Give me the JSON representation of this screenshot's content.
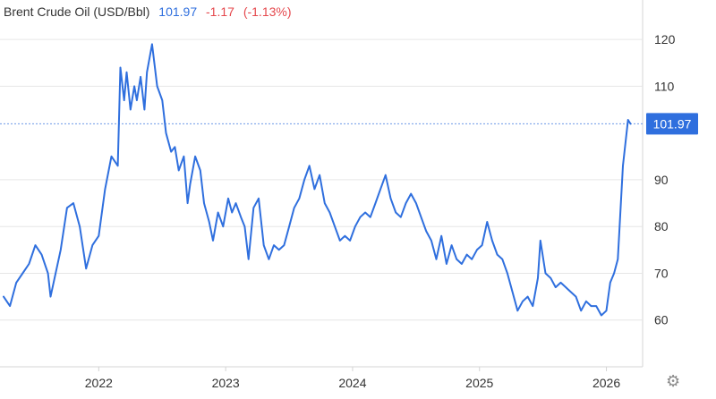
{
  "header": {
    "title": "Brent Crude Oil (USD/Bbl)",
    "price": "101.97",
    "change": "-1.17",
    "change_pct": "(-1.13%)"
  },
  "colors": {
    "line": "#2f6fde",
    "negative": "#e5484d",
    "grid": "#e6e6e6",
    "text": "#333333"
  },
  "settings_icon": "gear-icon",
  "chart_data": {
    "type": "line",
    "title": "Brent Crude Oil (USD/Bbl)",
    "xlabel": "",
    "ylabel": "",
    "ylim": [
      50,
      125
    ],
    "xlim": [
      2021.25,
      2026.25
    ],
    "y_ticks": [
      120,
      110,
      90,
      80,
      70,
      60
    ],
    "x_ticks": [
      "2022",
      "2023",
      "2024",
      "2025",
      "2026"
    ],
    "last_value_label": "101.97",
    "last_value": 101.97,
    "grid": true,
    "legend": "none",
    "series": [
      {
        "values": [
          [
            2021.25,
            65.0
          ],
          [
            2021.3,
            63.0
          ],
          [
            2021.35,
            68.0
          ],
          [
            2021.4,
            70.0
          ],
          [
            2021.45,
            72.0
          ],
          [
            2021.5,
            76.0
          ],
          [
            2021.55,
            74.0
          ],
          [
            2021.6,
            70.0
          ],
          [
            2021.62,
            65.0
          ],
          [
            2021.7,
            75.0
          ],
          [
            2021.75,
            84.0
          ],
          [
            2021.8,
            85.0
          ],
          [
            2021.85,
            80.0
          ],
          [
            2021.9,
            71.0
          ],
          [
            2021.95,
            76.0
          ],
          [
            2022.0,
            78.0
          ],
          [
            2022.05,
            88.0
          ],
          [
            2022.1,
            95.0
          ],
          [
            2022.15,
            93.0
          ],
          [
            2022.17,
            114.0
          ],
          [
            2022.2,
            107.0
          ],
          [
            2022.22,
            113.0
          ],
          [
            2022.25,
            105.0
          ],
          [
            2022.28,
            110.0
          ],
          [
            2022.3,
            107.0
          ],
          [
            2022.33,
            112.0
          ],
          [
            2022.36,
            105.0
          ],
          [
            2022.38,
            113.0
          ],
          [
            2022.42,
            119.0
          ],
          [
            2022.46,
            110.0
          ],
          [
            2022.5,
            107.0
          ],
          [
            2022.53,
            100.0
          ],
          [
            2022.57,
            96.0
          ],
          [
            2022.6,
            97.0
          ],
          [
            2022.63,
            92.0
          ],
          [
            2022.67,
            95.0
          ],
          [
            2022.7,
            85.0
          ],
          [
            2022.72,
            89.0
          ],
          [
            2022.76,
            95.0
          ],
          [
            2022.8,
            92.0
          ],
          [
            2022.83,
            85.0
          ],
          [
            2022.87,
            81.0
          ],
          [
            2022.9,
            77.0
          ],
          [
            2022.94,
            83.0
          ],
          [
            2022.98,
            80.0
          ],
          [
            2023.02,
            86.0
          ],
          [
            2023.05,
            83.0
          ],
          [
            2023.08,
            85.0
          ],
          [
            2023.12,
            82.0
          ],
          [
            2023.15,
            80.0
          ],
          [
            2023.18,
            73.0
          ],
          [
            2023.22,
            84.0
          ],
          [
            2023.26,
            86.0
          ],
          [
            2023.3,
            76.0
          ],
          [
            2023.34,
            73.0
          ],
          [
            2023.38,
            76.0
          ],
          [
            2023.42,
            75.0
          ],
          [
            2023.46,
            76.0
          ],
          [
            2023.5,
            80.0
          ],
          [
            2023.54,
            84.0
          ],
          [
            2023.58,
            86.0
          ],
          [
            2023.62,
            90.0
          ],
          [
            2023.66,
            93.0
          ],
          [
            2023.7,
            88.0
          ],
          [
            2023.74,
            91.0
          ],
          [
            2023.78,
            85.0
          ],
          [
            2023.82,
            83.0
          ],
          [
            2023.86,
            80.0
          ],
          [
            2023.9,
            77.0
          ],
          [
            2023.94,
            78.0
          ],
          [
            2023.98,
            77.0
          ],
          [
            2024.02,
            80.0
          ],
          [
            2024.06,
            82.0
          ],
          [
            2024.1,
            83.0
          ],
          [
            2024.14,
            82.0
          ],
          [
            2024.18,
            85.0
          ],
          [
            2024.22,
            88.0
          ],
          [
            2024.26,
            91.0
          ],
          [
            2024.3,
            86.0
          ],
          [
            2024.34,
            83.0
          ],
          [
            2024.38,
            82.0
          ],
          [
            2024.42,
            85.0
          ],
          [
            2024.46,
            87.0
          ],
          [
            2024.5,
            85.0
          ],
          [
            2024.54,
            82.0
          ],
          [
            2024.58,
            79.0
          ],
          [
            2024.62,
            77.0
          ],
          [
            2024.66,
            73.0
          ],
          [
            2024.7,
            78.0
          ],
          [
            2024.74,
            72.0
          ],
          [
            2024.78,
            76.0
          ],
          [
            2024.82,
            73.0
          ],
          [
            2024.86,
            72.0
          ],
          [
            2024.9,
            74.0
          ],
          [
            2024.94,
            73.0
          ],
          [
            2024.98,
            75.0
          ],
          [
            2025.02,
            76.0
          ],
          [
            2025.06,
            81.0
          ],
          [
            2025.1,
            77.0
          ],
          [
            2025.14,
            74.0
          ],
          [
            2025.18,
            73.0
          ],
          [
            2025.22,
            70.0
          ],
          [
            2025.26,
            66.0
          ],
          [
            2025.3,
            62.0
          ],
          [
            2025.34,
            64.0
          ],
          [
            2025.38,
            65.0
          ],
          [
            2025.42,
            63.0
          ],
          [
            2025.46,
            69.0
          ],
          [
            2025.48,
            77.0
          ],
          [
            2025.52,
            70.0
          ],
          [
            2025.56,
            69.0
          ],
          [
            2025.6,
            67.0
          ],
          [
            2025.64,
            68.0
          ],
          [
            2025.68,
            67.0
          ],
          [
            2025.72,
            66.0
          ],
          [
            2025.76,
            65.0
          ],
          [
            2025.8,
            62.0
          ],
          [
            2025.84,
            64.0
          ],
          [
            2025.88,
            63.0
          ],
          [
            2025.92,
            63.0
          ],
          [
            2025.96,
            61.0
          ],
          [
            2026.0,
            62.0
          ],
          [
            2026.03,
            68.0
          ],
          [
            2026.06,
            70.0
          ],
          [
            2026.09,
            73.0
          ],
          [
            2026.13,
            93.0
          ],
          [
            2026.17,
            102.8
          ],
          [
            2026.19,
            101.97
          ]
        ]
      }
    ]
  }
}
